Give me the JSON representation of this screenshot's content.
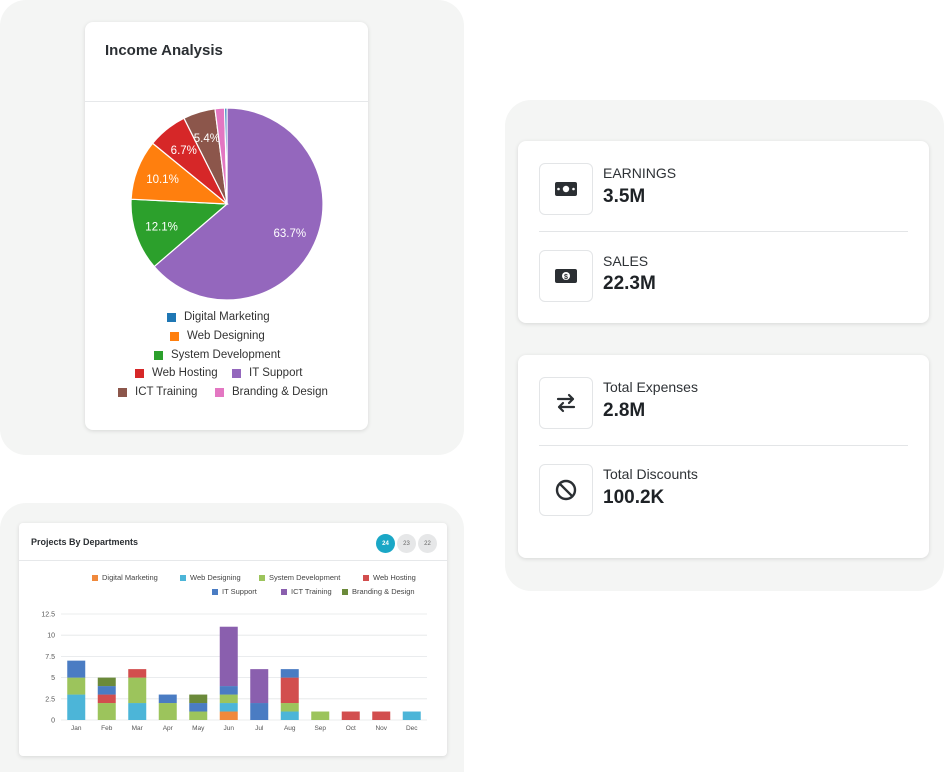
{
  "income": {
    "title": "Income Analysis",
    "chart_data": {
      "type": "pie",
      "title": "Income Analysis",
      "labels": [
        "Digital Marketing",
        "Web Designing",
        "System Development",
        "Web Hosting",
        "IT Support",
        "ICT Training",
        "Branding & Design"
      ],
      "values": [
        0.4,
        10.1,
        12.1,
        6.7,
        63.7,
        5.4,
        1.6
      ],
      "display_labels": [
        "",
        "10.1%",
        "12.1%",
        "6.7%",
        "63.7%",
        "5.4%",
        ""
      ],
      "colors": [
        "#1f77b4",
        "#ff7f0e",
        "#2ca02c",
        "#d62728",
        "#9467bd",
        "#8c564b",
        "#e377c2"
      ]
    }
  },
  "stats": {
    "earnings": {
      "label": "EARNINGS",
      "value": "3.5M",
      "icon": "banknote-icon"
    },
    "sales": {
      "label": "SALES",
      "value": "22.3M",
      "icon": "money-sign-icon"
    },
    "expenses": {
      "label": "Total Expenses",
      "value": "2.8M",
      "icon": "arrows-exchange-icon"
    },
    "discounts": {
      "label": "Total Discounts",
      "value": "100.2K",
      "icon": "ban-icon"
    }
  },
  "projects": {
    "title": "Projects By Departments",
    "pills": [
      "24",
      "23",
      "22"
    ],
    "active_pill": "24",
    "chart_data": {
      "type": "bar",
      "stacked": true,
      "categories": [
        "Jan",
        "Feb",
        "Mar",
        "Apr",
        "May",
        "Jun",
        "Jul",
        "Aug",
        "Sep",
        "Oct",
        "Nov",
        "Dec"
      ],
      "ylim": [
        0,
        12.5
      ],
      "yticks": [
        "12.5",
        "10",
        "7.5",
        "5",
        "2.5",
        "0"
      ],
      "series": [
        {
          "name": "Digital Marketing",
          "color": "#f0893c",
          "values": [
            0,
            0,
            0,
            0,
            0,
            1,
            0,
            0,
            0,
            0,
            0,
            0
          ]
        },
        {
          "name": "Web Designing",
          "color": "#4cb5d8",
          "values": [
            3,
            0,
            2,
            0,
            0,
            1,
            0,
            1,
            0,
            0,
            0,
            1
          ]
        },
        {
          "name": "System Development",
          "color": "#9cc45c",
          "values": [
            2,
            2,
            3,
            2,
            1,
            1,
            0,
            1,
            1,
            0,
            0,
            0
          ]
        },
        {
          "name": "Web Hosting",
          "color": "#d24e4e",
          "values": [
            0,
            1,
            1,
            0,
            0,
            0,
            0,
            3,
            0,
            1,
            1,
            0
          ]
        },
        {
          "name": "IT Support",
          "color": "#4a7cc3",
          "values": [
            2,
            1,
            0,
            1,
            1,
            1,
            2,
            1,
            0,
            0,
            0,
            0
          ]
        },
        {
          "name": "ICT Training",
          "color": "#8a5fae",
          "values": [
            0,
            0,
            0,
            0,
            0,
            7,
            4,
            0,
            0,
            0,
            0,
            0
          ]
        },
        {
          "name": "Branding & Design",
          "color": "#6b8a3a",
          "values": [
            0,
            1,
            0,
            0,
            1,
            0,
            0,
            0,
            0,
            0,
            0,
            0
          ]
        }
      ]
    }
  }
}
